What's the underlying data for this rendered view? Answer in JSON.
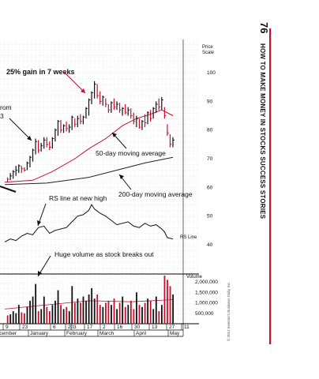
{
  "page": {
    "number": "76",
    "running_title": "HOW TO MAKE MONEY IN STOCKS SUCCESS STORIES",
    "copyright": "© 2012 Investor's Business Daily, Inc.",
    "accent_color": "#c8102e"
  },
  "chart_data": {
    "type": "candlestick",
    "scale": {
      "title": "Price",
      "subtitle": "Scale"
    },
    "price_ticks": [
      100,
      90,
      80,
      70,
      60,
      50,
      40
    ],
    "volume_ticks": [
      "2,000,000",
      "1,500,000",
      "1,000,000",
      "500,000"
    ],
    "volume_values": [
      2000000,
      1500000,
      1000000,
      500000
    ],
    "volume_label": "Volume",
    "rs_label": "RS Line",
    "date_ticks": [
      "9",
      "23",
      "6",
      "20",
      "3",
      "17",
      "2",
      "16",
      "30",
      "13",
      "27",
      "11"
    ],
    "months": [
      "December",
      "January",
      "February",
      "March",
      "April",
      "May"
    ],
    "annotations": [
      {
        "id": "gain",
        "text": "25% gain in 7 weeks"
      },
      {
        "id": "from",
        "text": "rom"
      },
      {
        "id": "b",
        "text": "3"
      },
      {
        "id": "ma50",
        "text": "50-day moving average"
      },
      {
        "id": "rs_high",
        "text": "RS line at new high"
      },
      {
        "id": "ma200",
        "text": "200-day moving average"
      },
      {
        "id": "volume",
        "text": "Huge volume as stock breaks out"
      }
    ],
    "price_bars": [
      {
        "x": 1,
        "low": 62.0,
        "high": 63.5,
        "close": 62.8,
        "up": false
      },
      {
        "x": 2,
        "low": 62.5,
        "high": 65.0,
        "close": 64.0,
        "up": true
      },
      {
        "x": 3,
        "low": 63.0,
        "high": 66.0,
        "close": 65.5,
        "up": true
      },
      {
        "x": 4,
        "low": 64.0,
        "high": 67.5,
        "close": 66.0,
        "up": true
      },
      {
        "x": 5,
        "low": 65.0,
        "high": 68.0,
        "close": 67.5,
        "up": true
      },
      {
        "x": 6,
        "low": 65.0,
        "high": 67.5,
        "close": 66.5,
        "up": false
      },
      {
        "x": 7,
        "low": 65.5,
        "high": 67.0,
        "close": 66.0,
        "up": false
      },
      {
        "x": 8,
        "low": 66.0,
        "high": 69.0,
        "close": 68.5,
        "up": true
      },
      {
        "x": 9,
        "low": 67.0,
        "high": 71.0,
        "close": 70.5,
        "up": true
      },
      {
        "x": 10,
        "low": 69.0,
        "high": 73.5,
        "close": 73.0,
        "up": true
      },
      {
        "x": 11,
        "low": 71.5,
        "high": 77.0,
        "close": 76.0,
        "up": true
      },
      {
        "x": 12,
        "low": 72.0,
        "high": 76.5,
        "close": 73.0,
        "up": false
      },
      {
        "x": 13,
        "low": 72.5,
        "high": 75.5,
        "close": 74.5,
        "up": true
      },
      {
        "x": 14,
        "low": 73.5,
        "high": 77.5,
        "close": 76.5,
        "up": true
      },
      {
        "x": 15,
        "low": 74.0,
        "high": 77.5,
        "close": 75.0,
        "up": false
      },
      {
        "x": 16,
        "low": 73.0,
        "high": 76.0,
        "close": 74.0,
        "up": false
      },
      {
        "x": 17,
        "low": 73.5,
        "high": 77.5,
        "close": 77.0,
        "up": true
      },
      {
        "x": 18,
        "low": 76.0,
        "high": 80.5,
        "close": 80.0,
        "up": true
      },
      {
        "x": 19,
        "low": 78.0,
        "high": 83.5,
        "close": 83.0,
        "up": true
      },
      {
        "x": 20,
        "low": 79.0,
        "high": 83.5,
        "close": 80.0,
        "up": false
      },
      {
        "x": 21,
        "low": 79.0,
        "high": 82.0,
        "close": 81.5,
        "up": true
      },
      {
        "x": 22,
        "low": 79.5,
        "high": 83.0,
        "close": 80.5,
        "up": false
      },
      {
        "x": 23,
        "low": 79.0,
        "high": 82.0,
        "close": 81.0,
        "up": true
      },
      {
        "x": 24,
        "low": 80.0,
        "high": 85.0,
        "close": 84.5,
        "up": true
      },
      {
        "x": 25,
        "low": 81.0,
        "high": 84.0,
        "close": 82.0,
        "up": false
      },
      {
        "x": 26,
        "low": 81.0,
        "high": 85.0,
        "close": 84.0,
        "up": true
      },
      {
        "x": 27,
        "low": 82.0,
        "high": 85.5,
        "close": 83.0,
        "up": false
      },
      {
        "x": 28,
        "low": 82.0,
        "high": 85.0,
        "close": 84.5,
        "up": true
      },
      {
        "x": 29,
        "low": 84.0,
        "high": 88.0,
        "close": 87.5,
        "up": true
      },
      {
        "x": 30,
        "low": 85.0,
        "high": 91.0,
        "close": 90.5,
        "up": true
      },
      {
        "x": 31,
        "low": 89.0,
        "high": 93.5,
        "close": 93.0,
        "up": true
      },
      {
        "x": 32,
        "low": 91.0,
        "high": 97.0,
        "close": 96.0,
        "up": true
      },
      {
        "x": 33,
        "low": 91.0,
        "high": 96.0,
        "close": 92.0,
        "up": false
      },
      {
        "x": 34,
        "low": 89.0,
        "high": 93.5,
        "close": 90.0,
        "up": false
      },
      {
        "x": 35,
        "low": 88.5,
        "high": 92.0,
        "close": 91.5,
        "up": true
      },
      {
        "x": 36,
        "low": 88.0,
        "high": 91.0,
        "close": 89.0,
        "up": false
      },
      {
        "x": 37,
        "low": 86.0,
        "high": 89.0,
        "close": 87.0,
        "up": false
      },
      {
        "x": 38,
        "low": 86.0,
        "high": 90.0,
        "close": 89.5,
        "up": true
      },
      {
        "x": 39,
        "low": 87.0,
        "high": 91.0,
        "close": 88.0,
        "up": false
      },
      {
        "x": 40,
        "low": 87.0,
        "high": 90.0,
        "close": 89.0,
        "up": true
      },
      {
        "x": 41,
        "low": 86.0,
        "high": 89.5,
        "close": 87.0,
        "up": false
      },
      {
        "x": 42,
        "low": 85.0,
        "high": 88.0,
        "close": 87.5,
        "up": true
      },
      {
        "x": 43,
        "low": 85.5,
        "high": 89.0,
        "close": 86.0,
        "up": false
      },
      {
        "x": 44,
        "low": 85.0,
        "high": 88.0,
        "close": 87.0,
        "up": true
      },
      {
        "x": 45,
        "low": 84.0,
        "high": 87.5,
        "close": 85.0,
        "up": false
      },
      {
        "x": 46,
        "low": 82.0,
        "high": 86.0,
        "close": 83.0,
        "up": false
      },
      {
        "x": 47,
        "low": 81.0,
        "high": 85.0,
        "close": 84.0,
        "up": true
      },
      {
        "x": 48,
        "low": 80.5,
        "high": 84.0,
        "close": 81.0,
        "up": false
      },
      {
        "x": 49,
        "low": 80.0,
        "high": 83.5,
        "close": 83.0,
        "up": true
      },
      {
        "x": 50,
        "low": 81.0,
        "high": 85.5,
        "close": 82.5,
        "up": false
      },
      {
        "x": 51,
        "low": 82.0,
        "high": 86.5,
        "close": 86.0,
        "up": true
      },
      {
        "x": 52,
        "low": 83.0,
        "high": 87.0,
        "close": 84.0,
        "up": false
      },
      {
        "x": 53,
        "low": 84.0,
        "high": 88.0,
        "close": 87.5,
        "up": true
      },
      {
        "x": 54,
        "low": 86.0,
        "high": 90.0,
        "close": 89.0,
        "up": true
      },
      {
        "x": 55,
        "low": 87.0,
        "high": 91.0,
        "close": 88.0,
        "up": false
      },
      {
        "x": 56,
        "low": 87.0,
        "high": 91.5,
        "close": 90.5,
        "up": true
      },
      {
        "x": 57,
        "low": 84.0,
        "high": 88.0,
        "close": 85.0,
        "up": false
      },
      {
        "x": 58,
        "low": 78.0,
        "high": 82.0,
        "close": 79.0,
        "up": false
      },
      {
        "x": 59,
        "low": 74.0,
        "high": 78.5,
        "close": 75.0,
        "up": false
      },
      {
        "x": 60,
        "low": 74.0,
        "high": 77.5,
        "close": 76.5,
        "up": true
      }
    ],
    "ma50": [
      [
        0,
        61.8
      ],
      [
        10,
        62.5
      ],
      [
        17,
        65.5
      ],
      [
        25,
        70.0
      ],
      [
        30,
        73.5
      ],
      [
        36,
        77.0
      ],
      [
        42,
        81.5
      ],
      [
        47,
        84.0
      ],
      [
        52,
        85.5
      ],
      [
        56,
        87.0
      ],
      [
        60,
        85.0
      ]
    ],
    "ma200": [
      [
        0,
        61.0
      ],
      [
        15,
        61.5
      ],
      [
        30,
        63.5
      ],
      [
        40,
        66.0
      ],
      [
        50,
        68.5
      ],
      [
        60,
        70.5
      ]
    ],
    "rs_line": [
      [
        0,
        41.0
      ],
      [
        2,
        42.0
      ],
      [
        4,
        41.5
      ],
      [
        6,
        43.0
      ],
      [
        8,
        44.0
      ],
      [
        10,
        43.5
      ],
      [
        12,
        46.0
      ],
      [
        14,
        46.5
      ],
      [
        16,
        44.0
      ],
      [
        18,
        45.0
      ],
      [
        20,
        45.5
      ],
      [
        22,
        46.0
      ],
      [
        24,
        48.0
      ],
      [
        26,
        50.0
      ],
      [
        28,
        50.5
      ],
      [
        30,
        52.0
      ],
      [
        31,
        54.0
      ],
      [
        32,
        52.5
      ],
      [
        34,
        51.0
      ],
      [
        36,
        50.0
      ],
      [
        38,
        48.5
      ],
      [
        40,
        47.0
      ],
      [
        42,
        47.5
      ],
      [
        44,
        48.0
      ],
      [
        46,
        46.5
      ],
      [
        48,
        46.0
      ],
      [
        50,
        47.5
      ],
      [
        52,
        46.5
      ],
      [
        54,
        47.0
      ],
      [
        56,
        45.5
      ],
      [
        57,
        44.5
      ],
      [
        58,
        42.5
      ],
      [
        60,
        42.0
      ]
    ],
    "volume_bars": [
      {
        "x": 1,
        "v": 400000,
        "up": false
      },
      {
        "x": 2,
        "v": 450000,
        "up": true
      },
      {
        "x": 3,
        "v": 600000,
        "up": true
      },
      {
        "x": 4,
        "v": 500000,
        "up": true
      },
      {
        "x": 5,
        "v": 900000,
        "up": true
      },
      {
        "x": 6,
        "v": 550000,
        "up": false
      },
      {
        "x": 7,
        "v": 500000,
        "up": false
      },
      {
        "x": 8,
        "v": 800000,
        "up": true
      },
      {
        "x": 9,
        "v": 1100000,
        "up": true
      },
      {
        "x": 10,
        "v": 1300000,
        "up": true
      },
      {
        "x": 11,
        "v": 1900000,
        "up": true
      },
      {
        "x": 12,
        "v": 600000,
        "up": false
      },
      {
        "x": 13,
        "v": 700000,
        "up": true
      },
      {
        "x": 14,
        "v": 1300000,
        "up": true
      },
      {
        "x": 15,
        "v": 800000,
        "up": false
      },
      {
        "x": 16,
        "v": 600000,
        "up": false
      },
      {
        "x": 17,
        "v": 900000,
        "up": true
      },
      {
        "x": 18,
        "v": 1100000,
        "up": true
      },
      {
        "x": 19,
        "v": 1600000,
        "up": true
      },
      {
        "x": 20,
        "v": 900000,
        "up": false
      },
      {
        "x": 21,
        "v": 700000,
        "up": true
      },
      {
        "x": 22,
        "v": 800000,
        "up": false
      },
      {
        "x": 23,
        "v": 600000,
        "up": true
      },
      {
        "x": 24,
        "v": 1800000,
        "up": true
      },
      {
        "x": 25,
        "v": 1000000,
        "up": false
      },
      {
        "x": 26,
        "v": 1200000,
        "up": true
      },
      {
        "x": 27,
        "v": 1000000,
        "up": false
      },
      {
        "x": 28,
        "v": 1300000,
        "up": true
      },
      {
        "x": 29,
        "v": 1100000,
        "up": true
      },
      {
        "x": 30,
        "v": 1400000,
        "up": true
      },
      {
        "x": 31,
        "v": 1700000,
        "up": true
      },
      {
        "x": 32,
        "v": 1200000,
        "up": true
      },
      {
        "x": 33,
        "v": 1400000,
        "up": false
      },
      {
        "x": 34,
        "v": 900000,
        "up": false
      },
      {
        "x": 35,
        "v": 800000,
        "up": true
      },
      {
        "x": 36,
        "v": 1000000,
        "up": false
      },
      {
        "x": 37,
        "v": 1100000,
        "up": false
      },
      {
        "x": 38,
        "v": 900000,
        "up": true
      },
      {
        "x": 39,
        "v": 1200000,
        "up": false
      },
      {
        "x": 40,
        "v": 700000,
        "up": true
      },
      {
        "x": 41,
        "v": 1000000,
        "up": false
      },
      {
        "x": 42,
        "v": 1300000,
        "up": true
      },
      {
        "x": 43,
        "v": 800000,
        "up": false
      },
      {
        "x": 44,
        "v": 900000,
        "up": true
      },
      {
        "x": 45,
        "v": 1100000,
        "up": false
      },
      {
        "x": 46,
        "v": 700000,
        "up": false
      },
      {
        "x": 47,
        "v": 1500000,
        "up": true
      },
      {
        "x": 48,
        "v": 900000,
        "up": false
      },
      {
        "x": 49,
        "v": 800000,
        "up": true
      },
      {
        "x": 50,
        "v": 1000000,
        "up": false
      },
      {
        "x": 51,
        "v": 1200000,
        "up": true
      },
      {
        "x": 52,
        "v": 1100000,
        "up": false
      },
      {
        "x": 53,
        "v": 700000,
        "up": true
      },
      {
        "x": 54,
        "v": 1300000,
        "up": true
      },
      {
        "x": 55,
        "v": 600000,
        "up": false
      },
      {
        "x": 56,
        "v": 900000,
        "up": true
      },
      {
        "x": 57,
        "v": 2300000,
        "up": false
      },
      {
        "x": 58,
        "v": 2100000,
        "up": false
      },
      {
        "x": 59,
        "v": 1800000,
        "up": false
      },
      {
        "x": 60,
        "v": 1400000,
        "up": true
      }
    ],
    "volume_avg": [
      [
        0,
        700000
      ],
      [
        15,
        900000
      ],
      [
        30,
        1100000
      ],
      [
        45,
        1050000
      ],
      [
        60,
        1150000
      ]
    ]
  }
}
